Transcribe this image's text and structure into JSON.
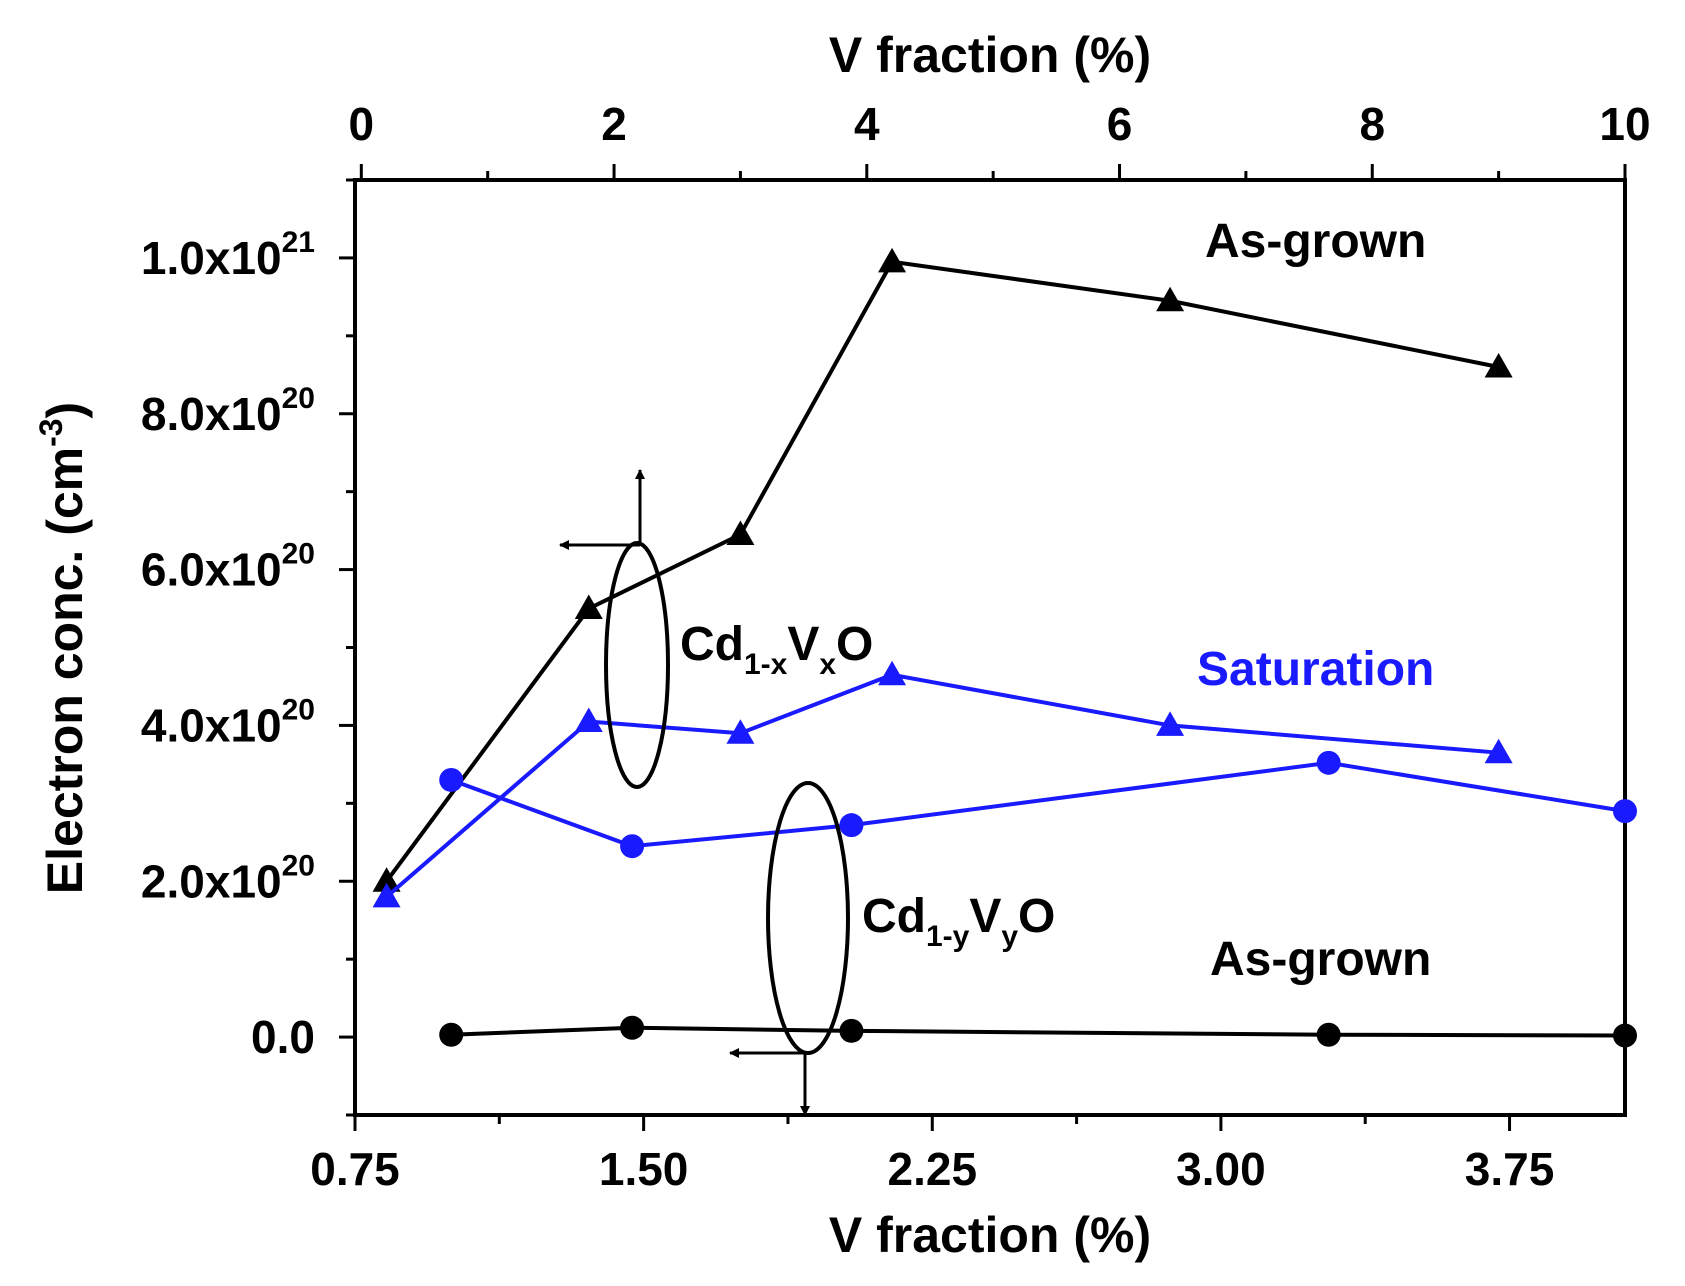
{
  "colors": {
    "black": "#000000",
    "blue": "#1a1aff",
    "background": "#ffffff"
  },
  "chart_data": {
    "type": "line",
    "ylabel": "Electron conc. (cm",
    "ylabel_sup": "-3",
    "ylabel_close": ")",
    "xlabel_bottom": "V fraction (%)",
    "xlabel_top": "V fraction (%)",
    "bottom_axis": {
      "range": [
        0.75,
        4.05
      ],
      "ticks": [
        0.75,
        1.5,
        2.25,
        3.0,
        3.75
      ],
      "tick_labels": [
        "0.75",
        "1.50",
        "2.25",
        "3.00",
        "3.75"
      ]
    },
    "top_axis": {
      "range": [
        -0.05,
        10
      ],
      "ticks": [
        0,
        2,
        4,
        6,
        8,
        10
      ],
      "tick_labels": [
        "0",
        "2",
        "4",
        "6",
        "8",
        "10"
      ]
    },
    "y_axis": {
      "range": [
        -1e+20,
        1.1e+21
      ],
      "ticks": [
        0,
        2e+20,
        4e+20,
        6e+20,
        8e+20,
        1e+21
      ],
      "tick_labels": [
        {
          "mantissa": "0.0",
          "exp": ""
        },
        {
          "mantissa": "2.0x10",
          "exp": "20"
        },
        {
          "mantissa": "4.0x10",
          "exp": "20"
        },
        {
          "mantissa": "6.0x10",
          "exp": "20"
        },
        {
          "mantissa": "8.0x10",
          "exp": "20"
        },
        {
          "mantissa": "1.0x10",
          "exp": "21"
        }
      ]
    },
    "series": [
      {
        "name": "Cd1-xVxO As-grown",
        "axis": "top",
        "marker": "triangle",
        "color": "#000000",
        "x": [
          0.2,
          1.8,
          3.0,
          4.2,
          6.4,
          9.0
        ],
        "y": [
          2e+20,
          5.5e+20,
          6.45e+20,
          9.95e+20,
          9.45e+20,
          8.6e+20
        ]
      },
      {
        "name": "Cd1-xVxO Saturation",
        "axis": "top",
        "marker": "triangle",
        "color": "#1a1aff",
        "x": [
          0.2,
          1.8,
          3.0,
          4.2,
          6.4,
          9.0
        ],
        "y": [
          1.8e+20,
          4.05e+20,
          3.9e+20,
          4.65e+20,
          4e+20,
          3.65e+20
        ]
      },
      {
        "name": "Cd1-yVyO Saturation",
        "axis": "bottom",
        "marker": "circle",
        "color": "#1a1aff",
        "x": [
          1.0,
          1.47,
          2.04,
          3.28,
          4.05
        ],
        "y": [
          3.3e+20,
          2.45e+20,
          2.72e+20,
          3.52e+20,
          2.9e+20
        ]
      },
      {
        "name": "Cd1-yVyO As-grown",
        "axis": "bottom",
        "marker": "circle",
        "color": "#000000",
        "x": [
          1.0,
          1.47,
          2.04,
          3.28,
          4.05
        ],
        "y": [
          3e+18,
          1.2e+19,
          8e+18,
          3e+18,
          2e+18
        ]
      }
    ],
    "annotations": {
      "as_grown_top": "As-grown",
      "saturation": "Saturation",
      "as_grown_bottom": "As-grown",
      "cdx": {
        "base1": "Cd",
        "sub1": "1-x",
        "base2": "V",
        "sub2": "x",
        "base3": "O"
      },
      "cdy": {
        "base1": "Cd",
        "sub1": "1-y",
        "base2": "V",
        "sub2": "y",
        "base3": "O"
      }
    }
  }
}
